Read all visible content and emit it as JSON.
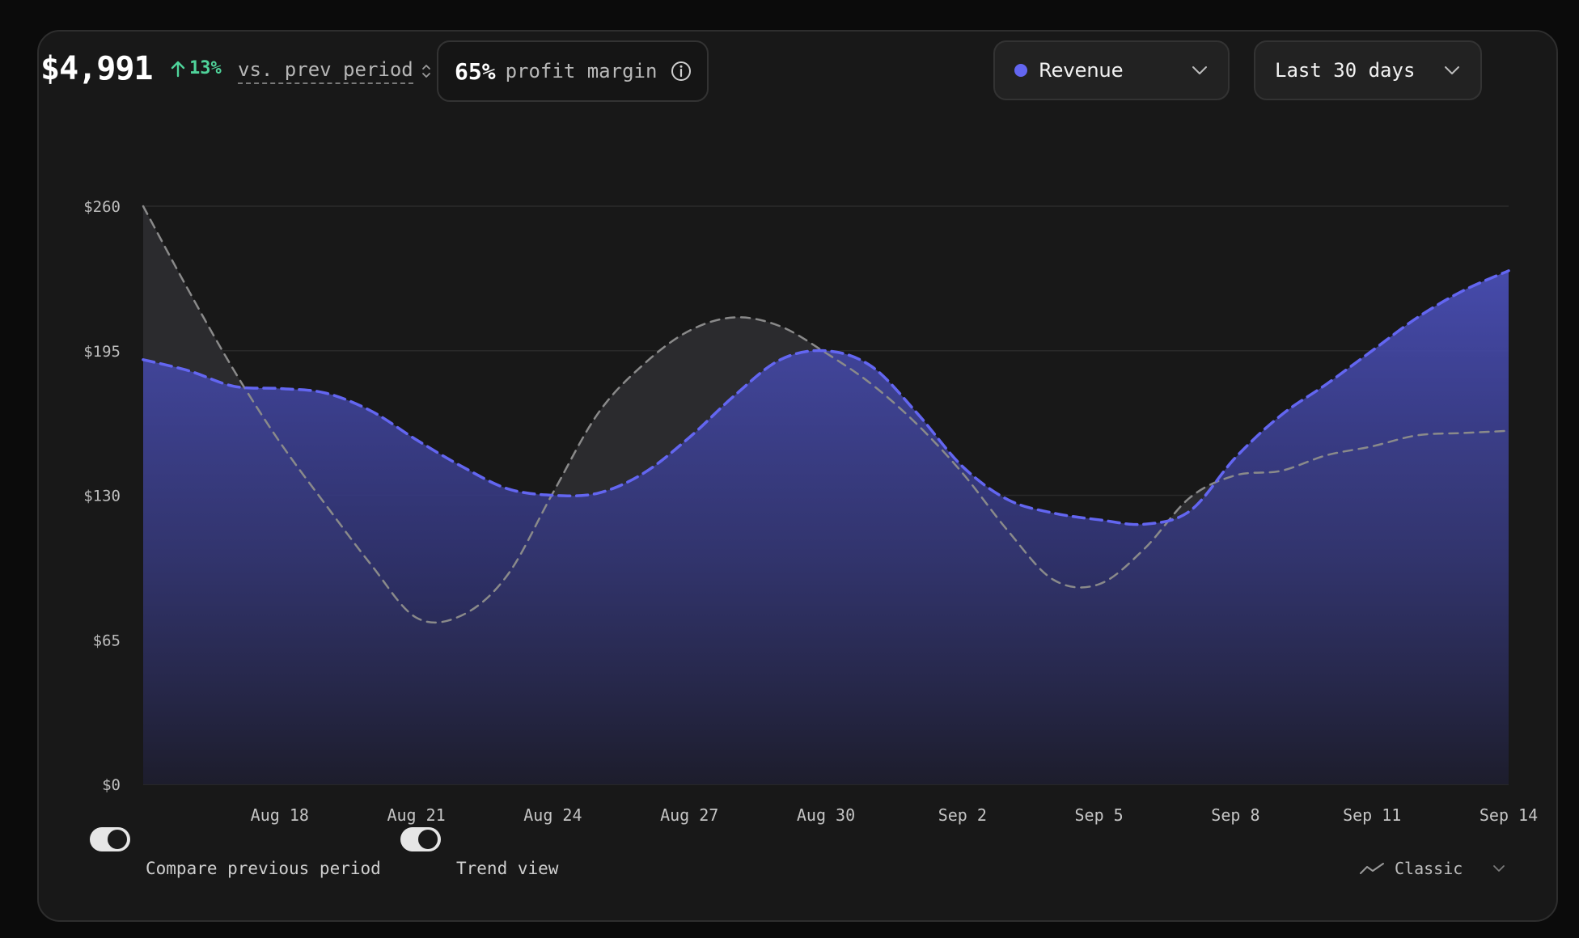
{
  "header": {
    "total": "$4,991",
    "delta": "13%",
    "compare_label": "vs. prev period",
    "margin_value": "65%",
    "margin_label": "profit margin"
  },
  "metric_select": {
    "label": "Revenue",
    "dot_color": "#6366f1"
  },
  "range_select": {
    "label": "Last 30 days"
  },
  "footer": {
    "compare_toggle_label": "Compare previous period",
    "compare_toggle_on": true,
    "trend_toggle_label": "Trend view",
    "trend_toggle_on": true,
    "view_mode": "Classic"
  },
  "chart_data": {
    "type": "area",
    "x": [
      "Aug 15",
      "Aug 16",
      "Aug 17",
      "Aug 18",
      "Aug 19",
      "Aug 20",
      "Aug 21",
      "Aug 22",
      "Aug 23",
      "Aug 24",
      "Aug 25",
      "Aug 26",
      "Aug 27",
      "Aug 28",
      "Aug 29",
      "Aug 30",
      "Aug 31",
      "Sep 1",
      "Sep 2",
      "Sep 3",
      "Sep 4",
      "Sep 5",
      "Sep 6",
      "Sep 7",
      "Sep 8",
      "Sep 9",
      "Sep 10",
      "Sep 11",
      "Sep 12",
      "Sep 13",
      "Sep 14"
    ],
    "x_ticks": [
      "Aug 18",
      "Aug 21",
      "Aug 24",
      "Aug 27",
      "Aug 30",
      "Sep 2",
      "Sep 5",
      "Sep 8",
      "Sep 11",
      "Sep 14"
    ],
    "y_ticks": [
      "$0",
      "$65",
      "$130",
      "$195",
      "$260"
    ],
    "ylim": [
      0,
      260
    ],
    "grid": true,
    "series": [
      {
        "name": "Revenue",
        "color": "#6366f1",
        "style": "dashed-area",
        "values": [
          191,
          186,
          179,
          178,
          176,
          168,
          155,
          143,
          133,
          130,
          131,
          140,
          156,
          175,
          191,
          195,
          188,
          167,
          143,
          128,
          122,
          119,
          117,
          123,
          147,
          166,
          180,
          195,
          210,
          222,
          231
        ]
      },
      {
        "name": "Previous period",
        "color": "#8a8a8a",
        "style": "dashed-line",
        "values": [
          260,
          222,
          186,
          154,
          126,
          99,
          75,
          76,
          94,
          131,
          167,
          189,
          204,
          210,
          206,
          194,
          180,
          162,
          140,
          114,
          92,
          90,
          106,
          129,
          139,
          141,
          148,
          152,
          157,
          158,
          159
        ]
      }
    ]
  }
}
